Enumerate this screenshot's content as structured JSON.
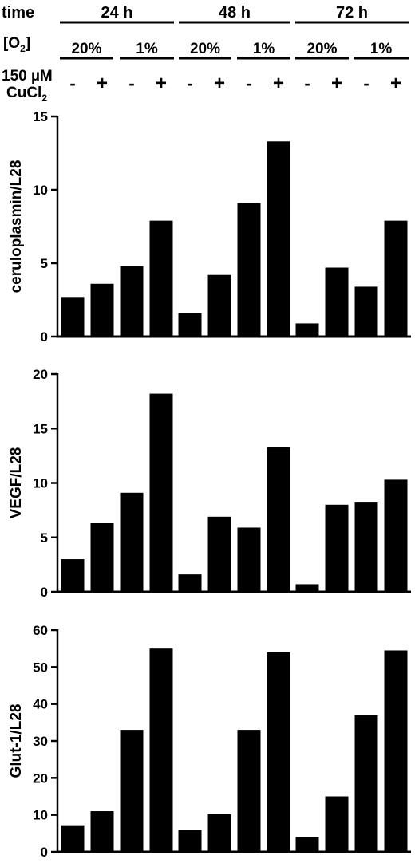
{
  "header": {
    "time_label": "time",
    "o2_label": "[O",
    "o2_sub": "2",
    "o2_close": "]",
    "cu_label_line1": "150 µM",
    "cu_label_line2": "CuCl",
    "cu_sub": "2",
    "times": [
      "24 h",
      "48 h",
      "72 h"
    ],
    "o2_levels": [
      "20%",
      "1%",
      "20%",
      "1%",
      "20%",
      "1%"
    ],
    "cu_signs": [
      "-",
      "+",
      "-",
      "+",
      "-",
      "+",
      "-",
      "+",
      "-",
      "+",
      "-",
      "+"
    ]
  },
  "chart_data": [
    {
      "type": "bar",
      "ylabel": "ceruloplasmin/L28",
      "ylim": [
        0,
        15
      ],
      "yticks": [
        0,
        5,
        10,
        15
      ],
      "values": [
        2.7,
        3.6,
        4.8,
        7.9,
        1.6,
        4.2,
        9.1,
        13.3,
        0.9,
        4.7,
        3.4,
        7.9
      ]
    },
    {
      "type": "bar",
      "ylabel": "VEGF/L28",
      "ylim": [
        0,
        20
      ],
      "yticks": [
        0,
        5,
        10,
        15,
        20
      ],
      "values": [
        3.0,
        6.3,
        9.1,
        18.2,
        1.6,
        6.9,
        5.9,
        13.3,
        0.7,
        8.0,
        8.2,
        10.3
      ]
    },
    {
      "type": "bar",
      "ylabel": "Glut-1/L28",
      "ylim": [
        0,
        60
      ],
      "yticks": [
        0,
        10,
        20,
        30,
        40,
        50,
        60
      ],
      "values": [
        7.2,
        11.0,
        33.0,
        55.0,
        6.0,
        10.2,
        33.0,
        54.0,
        4.0,
        15.0,
        37.0,
        54.5
      ]
    }
  ]
}
